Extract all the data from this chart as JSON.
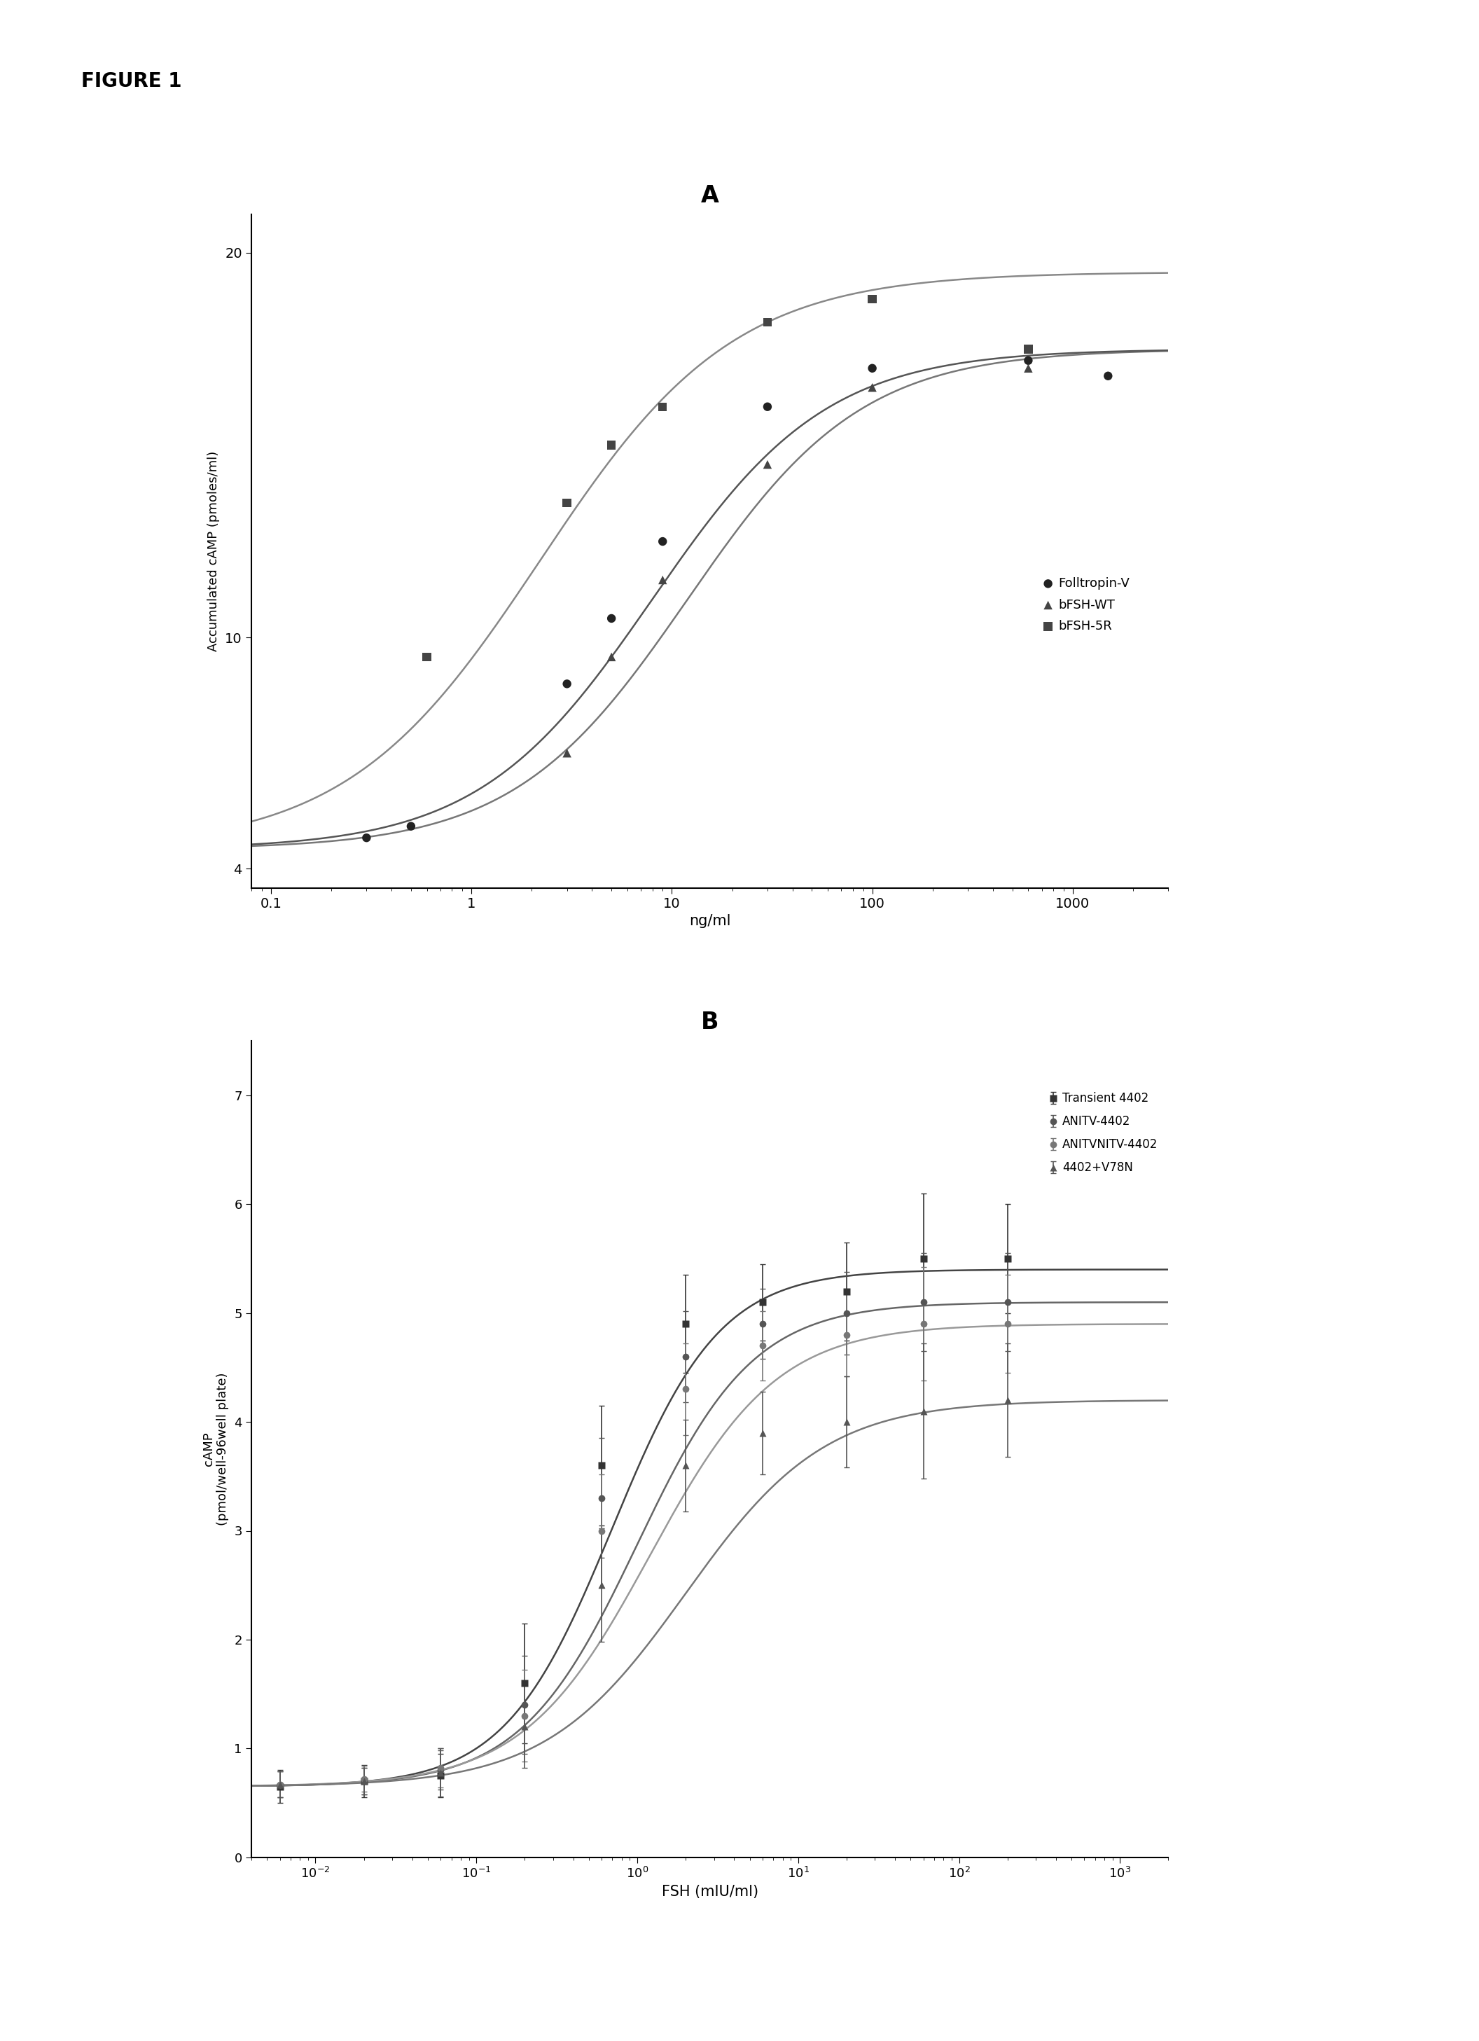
{
  "fig_label": "FIGURE 1",
  "panel_A": {
    "title": "A",
    "xlabel": "ng/ml",
    "ylabel": "Accumulated cAMP (pmoles/ml)",
    "xlim": [
      0.08,
      3000
    ],
    "ylim": [
      3.5,
      21
    ],
    "yticks": [
      4,
      10,
      20
    ],
    "xticks": [
      0.1,
      1,
      10,
      100,
      1000
    ],
    "xtick_labels": [
      "0.1",
      "1",
      "10",
      "100",
      "1000"
    ],
    "series": {
      "Folltropin-V": {
        "marker": "o",
        "color": "#222222",
        "line_color": "#555555",
        "ec50": 8.0,
        "bottom": 4.5,
        "top": 17.5,
        "hillslope": 1.0,
        "scatter_x": [
          0.3,
          0.5,
          3,
          5,
          9,
          30,
          100,
          600,
          1500
        ],
        "scatter_y": [
          4.8,
          5.1,
          8.8,
          10.5,
          12.5,
          16.0,
          17.0,
          17.2,
          16.8
        ]
      },
      "bFSH-WT": {
        "marker": "^",
        "color": "#444444",
        "line_color": "#777777",
        "ec50": 12.0,
        "bottom": 4.5,
        "top": 17.5,
        "hillslope": 1.0,
        "scatter_x": [
          3,
          5,
          9,
          30,
          100,
          600
        ],
        "scatter_y": [
          7.0,
          9.5,
          11.5,
          14.5,
          16.5,
          17.0
        ]
      },
      "bFSH-5R": {
        "marker": "s",
        "color": "#444444",
        "line_color": "#888888",
        "ec50": 2.2,
        "bottom": 4.5,
        "top": 19.5,
        "hillslope": 0.9,
        "scatter_x": [
          0.6,
          3,
          5,
          9,
          30,
          100,
          600
        ],
        "scatter_y": [
          9.5,
          13.5,
          15.0,
          16.0,
          18.2,
          18.8,
          17.5
        ]
      }
    },
    "legend_order": [
      "Folltropin-V",
      "bFSH-WT",
      "bFSH-5R"
    ],
    "line_order": [
      "bFSH-5R",
      "bFSH-WT",
      "Folltropin-V"
    ]
  },
  "panel_B": {
    "title": "B",
    "xlabel": "FSH (mIU/ml)",
    "ylabel": "cAMP\n(pmol/well-96well plate)",
    "xlim": [
      0.004,
      2000
    ],
    "ylim": [
      0,
      7.5
    ],
    "yticks": [
      0,
      1,
      2,
      3,
      4,
      5,
      6,
      7
    ],
    "xticks": [
      0.01,
      0.1,
      1,
      10,
      100,
      1000
    ],
    "xtick_labels": [
      "10$^{-2}$",
      "10$^{-1}$",
      "10$^{0}$",
      "10$^{1}$",
      "10$^{2}$",
      "10$^{3}$"
    ],
    "series": {
      "Transient 4402": {
        "marker": "s",
        "color": "#333333",
        "line_color": "#444444",
        "ec50": 0.7,
        "bottom": 0.65,
        "top": 5.4,
        "hillslope": 1.3,
        "scatter_x": [
          0.006,
          0.02,
          0.06,
          0.2,
          0.6,
          2,
          6,
          20,
          60,
          200
        ],
        "scatter_y": [
          0.65,
          0.7,
          0.75,
          1.6,
          3.6,
          4.9,
          5.1,
          5.2,
          5.5,
          5.5
        ],
        "yerr": [
          0.15,
          0.15,
          0.2,
          0.55,
          0.55,
          0.45,
          0.35,
          0.45,
          0.6,
          0.5
        ]
      },
      "ANITV-4402": {
        "marker": "o",
        "color": "#555555",
        "line_color": "#666666",
        "ec50": 1.0,
        "bottom": 0.65,
        "top": 5.1,
        "hillslope": 1.2,
        "scatter_x": [
          0.006,
          0.02,
          0.06,
          0.2,
          0.6,
          2,
          6,
          20,
          60,
          200
        ],
        "scatter_y": [
          0.67,
          0.7,
          0.8,
          1.4,
          3.3,
          4.6,
          4.9,
          5.0,
          5.1,
          5.1
        ],
        "yerr": [
          0.12,
          0.12,
          0.18,
          0.45,
          0.55,
          0.42,
          0.32,
          0.38,
          0.45,
          0.45
        ]
      },
      "ANITVNITV-4402": {
        "marker": "o",
        "color": "#777777",
        "line_color": "#999999",
        "ec50": 1.2,
        "bottom": 0.65,
        "top": 4.9,
        "hillslope": 1.1,
        "scatter_x": [
          0.006,
          0.02,
          0.06,
          0.2,
          0.6,
          2,
          6,
          20,
          60,
          200
        ],
        "scatter_y": [
          0.67,
          0.72,
          0.82,
          1.3,
          3.0,
          4.3,
          4.7,
          4.8,
          4.9,
          4.9
        ],
        "yerr": [
          0.12,
          0.12,
          0.18,
          0.42,
          0.52,
          0.42,
          0.32,
          0.38,
          0.52,
          0.45
        ]
      },
      "4402+V78N": {
        "marker": "^",
        "color": "#555555",
        "line_color": "#777777",
        "ec50": 2.0,
        "bottom": 0.65,
        "top": 4.2,
        "hillslope": 1.0,
        "scatter_x": [
          0.006,
          0.02,
          0.06,
          0.2,
          0.6,
          2,
          6,
          20,
          60,
          200
        ],
        "scatter_y": [
          0.67,
          0.7,
          0.78,
          1.2,
          2.5,
          3.6,
          3.9,
          4.0,
          4.1,
          4.2
        ],
        "yerr": [
          0.12,
          0.12,
          0.22,
          0.38,
          0.52,
          0.42,
          0.38,
          0.42,
          0.62,
          0.52
        ]
      }
    },
    "legend_order": [
      "Transient 4402",
      "ANITV-4402",
      "ANITVNITV-4402",
      "4402+V78N"
    ],
    "line_order": [
      "Transient 4402",
      "ANITV-4402",
      "ANITVNITV-4402",
      "4402+V78N"
    ]
  },
  "background_color": "#ffffff"
}
